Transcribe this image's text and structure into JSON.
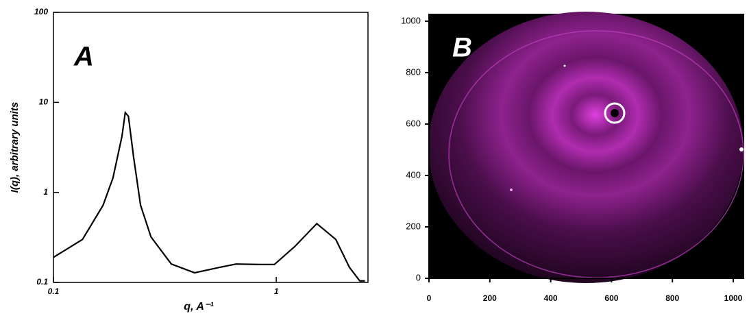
{
  "chart_data": [
    {
      "type": "line",
      "title": "A",
      "x_label": "q, A⁻¹",
      "y_label": "I(q), arbitrary units",
      "color": "#000000",
      "log_x": true,
      "log_y": true,
      "x": [
        0.1,
        0.135,
        0.167,
        0.185,
        0.203,
        0.21,
        0.217,
        0.229,
        0.246,
        0.274,
        0.338,
        0.43,
        0.556,
        0.66,
        0.85,
        0.98,
        1.21,
        1.52,
        1.85,
        2.13,
        2.37,
        2.5
      ],
      "values": [
        0.19,
        0.3,
        0.72,
        1.45,
        4.2,
        7.7,
        7,
        2.45,
        0.72,
        0.32,
        0.16,
        0.128,
        0.147,
        0.16,
        0.158,
        0.158,
        0.25,
        0.45,
        0.3,
        0.147,
        0.104,
        0.104
      ],
      "xlim": [
        0.1,
        2.58
      ],
      "ylim": [
        0.1,
        100
      ],
      "xticks": [
        0.1,
        1
      ],
      "yticks": [
        0.1,
        1,
        10,
        100
      ]
    },
    {
      "type": "image",
      "title": "B",
      "xlim": [
        0,
        1036
      ],
      "ylim": [
        0,
        1029
      ],
      "xticks": [
        0,
        200,
        400,
        600,
        800,
        1000
      ],
      "yticks": [
        0,
        200,
        400,
        600,
        800,
        1000
      ]
    }
  ]
}
